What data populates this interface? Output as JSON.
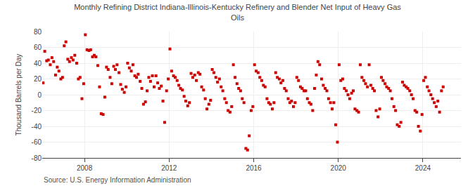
{
  "chart_data": {
    "type": "scatter",
    "title": "Monthly Refining District Indiana-Illinois-Kentucky Refinery and Blender Net Input of Heavy Gas\nOils",
    "ylabel": "Thousand Barrels per Day",
    "annotations": [
      "Source: U.S. Energy Information Administration"
    ],
    "color": "#cc0000",
    "marker": "square",
    "grid": true,
    "xlim": [
      2006.0,
      2025.8
    ],
    "xticks": [
      2008,
      2012,
      2016,
      2020,
      2024
    ],
    "ylim": [
      -80,
      80
    ],
    "yticks": [
      -80,
      -60,
      -40,
      -20,
      0,
      20,
      40,
      60,
      80
    ],
    "x": [
      2006.04,
      2006.12,
      2006.21,
      2006.29,
      2006.38,
      2006.46,
      2006.54,
      2006.63,
      2006.71,
      2006.79,
      2006.88,
      2006.96,
      2007.04,
      2007.12,
      2007.21,
      2007.29,
      2007.38,
      2007.46,
      2007.54,
      2007.63,
      2007.71,
      2007.79,
      2007.88,
      2007.96,
      2008.04,
      2008.12,
      2008.21,
      2008.29,
      2008.38,
      2008.46,
      2008.54,
      2008.63,
      2008.71,
      2008.79,
      2008.88,
      2008.96,
      2009.04,
      2009.12,
      2009.21,
      2009.29,
      2009.38,
      2009.46,
      2009.54,
      2009.63,
      2009.71,
      2009.79,
      2009.88,
      2009.96,
      2010.04,
      2010.12,
      2010.21,
      2010.29,
      2010.38,
      2010.46,
      2010.54,
      2010.63,
      2010.71,
      2010.79,
      2010.88,
      2010.96,
      2011.04,
      2011.12,
      2011.21,
      2011.29,
      2011.38,
      2011.46,
      2011.54,
      2011.63,
      2011.71,
      2011.79,
      2011.88,
      2011.96,
      2012.04,
      2012.12,
      2012.21,
      2012.29,
      2012.38,
      2012.46,
      2012.54,
      2012.63,
      2012.71,
      2012.79,
      2012.88,
      2012.96,
      2013.04,
      2013.12,
      2013.21,
      2013.29,
      2013.38,
      2013.46,
      2013.54,
      2013.63,
      2013.71,
      2013.79,
      2013.88,
      2013.96,
      2014.04,
      2014.12,
      2014.21,
      2014.29,
      2014.38,
      2014.46,
      2014.54,
      2014.63,
      2014.71,
      2014.79,
      2014.88,
      2014.96,
      2015.04,
      2015.12,
      2015.21,
      2015.29,
      2015.38,
      2015.46,
      2015.54,
      2015.63,
      2015.71,
      2015.79,
      2015.88,
      2015.96,
      2016.04,
      2016.12,
      2016.21,
      2016.29,
      2016.38,
      2016.46,
      2016.54,
      2016.63,
      2016.71,
      2016.79,
      2016.88,
      2016.96,
      2017.04,
      2017.12,
      2017.21,
      2017.29,
      2017.38,
      2017.46,
      2017.54,
      2017.63,
      2017.71,
      2017.79,
      2017.88,
      2017.96,
      2018.04,
      2018.12,
      2018.21,
      2018.29,
      2018.38,
      2018.46,
      2018.54,
      2018.63,
      2018.71,
      2018.79,
      2018.88,
      2018.96,
      2019.04,
      2019.12,
      2019.21,
      2019.29,
      2019.38,
      2019.46,
      2019.54,
      2019.63,
      2019.71,
      2019.79,
      2019.88,
      2019.96,
      2020.04,
      2020.12,
      2020.21,
      2020.29,
      2020.38,
      2020.46,
      2020.54,
      2020.63,
      2020.71,
      2020.79,
      2020.88,
      2020.96,
      2021.04,
      2021.12,
      2021.21,
      2021.29,
      2021.38,
      2021.46,
      2021.54,
      2021.63,
      2021.71,
      2021.79,
      2021.88,
      2021.96,
      2022.04,
      2022.12,
      2022.21,
      2022.29,
      2022.38,
      2022.46,
      2022.54,
      2022.63,
      2022.71,
      2022.79,
      2022.88,
      2022.96,
      2023.04,
      2023.12,
      2023.21,
      2023.29,
      2023.38,
      2023.46,
      2023.54,
      2023.63,
      2023.71,
      2023.79,
      2023.88,
      2023.96,
      2024.04,
      2024.12,
      2024.21,
      2024.29,
      2024.38,
      2024.46,
      2024.54,
      2024.63,
      2024.71,
      2024.79,
      2024.88,
      2024.96
    ],
    "values": [
      15,
      55,
      43,
      44,
      38,
      47,
      42,
      25,
      35,
      30,
      20,
      22,
      62,
      67,
      45,
      42,
      47,
      44,
      50,
      40,
      20,
      22,
      -5,
      14,
      76,
      57,
      56,
      57,
      48,
      50,
      48,
      37,
      10,
      -24,
      -25,
      -3,
      35,
      32,
      22,
      14,
      36,
      32,
      38,
      28,
      13,
      7,
      3,
      10,
      40,
      34,
      30,
      38,
      24,
      22,
      26,
      17,
      8,
      -12,
      -9,
      5,
      22,
      17,
      24,
      10,
      24,
      15,
      8,
      11,
      -8,
      -35,
      5,
      20,
      58,
      30,
      24,
      22,
      18,
      12,
      8,
      6,
      -2,
      -8,
      -14,
      -10,
      27,
      22,
      25,
      18,
      28,
      26,
      10,
      6,
      -5,
      -18,
      -12,
      -7,
      32,
      28,
      22,
      16,
      20,
      10,
      5,
      -5,
      -10,
      -20,
      -22,
      -15,
      38,
      22,
      14,
      8,
      5,
      -5,
      -10,
      -68,
      -70,
      -52,
      -20,
      -15,
      38,
      30,
      28,
      22,
      18,
      12,
      10,
      -5,
      -10,
      -12,
      -18,
      -10,
      28,
      22,
      20,
      15,
      18,
      8,
      5,
      -5,
      -10,
      -8,
      -15,
      -10,
      22,
      18,
      10,
      8,
      5,
      5,
      -5,
      -10,
      -12,
      -20,
      8,
      25,
      42,
      38,
      20,
      12,
      8,
      5,
      -5,
      -10,
      -18,
      -10,
      -38,
      -60,
      38,
      18,
      20,
      8,
      5,
      0,
      -5,
      2,
      5,
      -18,
      -20,
      -22,
      38,
      22,
      18,
      14,
      10,
      38,
      12,
      8,
      5,
      -20,
      -28,
      -18,
      22,
      18,
      14,
      10,
      8,
      5,
      -5,
      -15,
      -20,
      -38,
      -40,
      -35,
      16,
      12,
      10,
      8,
      5,
      0,
      -5,
      -20,
      -22,
      -40,
      -46,
      -25,
      18,
      22,
      10,
      5,
      0,
      -5,
      -10,
      -15,
      -8,
      -22,
      5,
      10
    ]
  }
}
